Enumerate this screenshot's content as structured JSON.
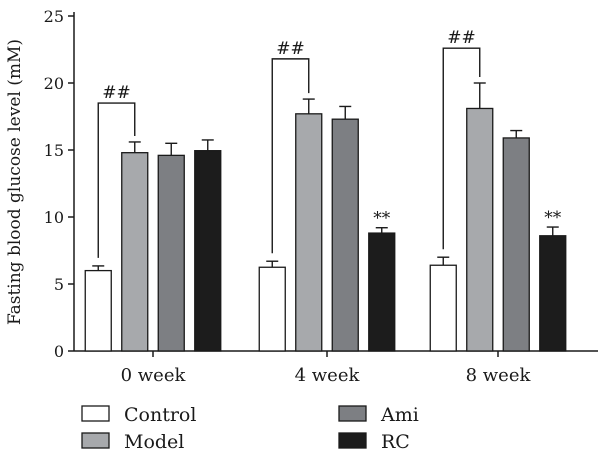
{
  "chart_data": {
    "type": "bar",
    "ylabel": "Fasting blood glucose level (mM)",
    "ylim": [
      0,
      25
    ],
    "yticks": [
      0,
      5,
      10,
      15,
      20,
      25
    ],
    "categories": [
      "0 week",
      "4 week",
      "8 week"
    ],
    "series": [
      {
        "name": "Control",
        "color": "#ffffff",
        "values": [
          6.0,
          6.25,
          6.4
        ],
        "errors": [
          0.35,
          0.45,
          0.6
        ]
      },
      {
        "name": "Model",
        "color": "#a7a9ac",
        "values": [
          14.8,
          17.7,
          18.1
        ],
        "errors": [
          0.8,
          1.1,
          1.9
        ]
      },
      {
        "name": "Ami",
        "color": "#7d7f83",
        "values": [
          14.6,
          17.3,
          15.9
        ],
        "errors": [
          0.9,
          0.95,
          0.55
        ]
      },
      {
        "name": "RC",
        "color": "#1c1c1c",
        "values": [
          14.95,
          8.8,
          8.6
        ],
        "errors": [
          0.8,
          0.4,
          0.65
        ]
      }
    ],
    "annotations": [
      {
        "text": "##",
        "category": 0,
        "from_series": "Control",
        "to_series": "Model",
        "y": 18.5
      },
      {
        "text": "##",
        "category": 1,
        "from_series": "Control",
        "to_series": "Model",
        "y": 21.8
      },
      {
        "text": "##",
        "category": 2,
        "from_series": "Control",
        "to_series": "Model",
        "y": 22.6
      },
      {
        "text": "**",
        "category": 1,
        "series": "RC"
      },
      {
        "text": "**",
        "category": 2,
        "series": "RC"
      }
    ],
    "legend_position": "bottom",
    "grid": false
  }
}
